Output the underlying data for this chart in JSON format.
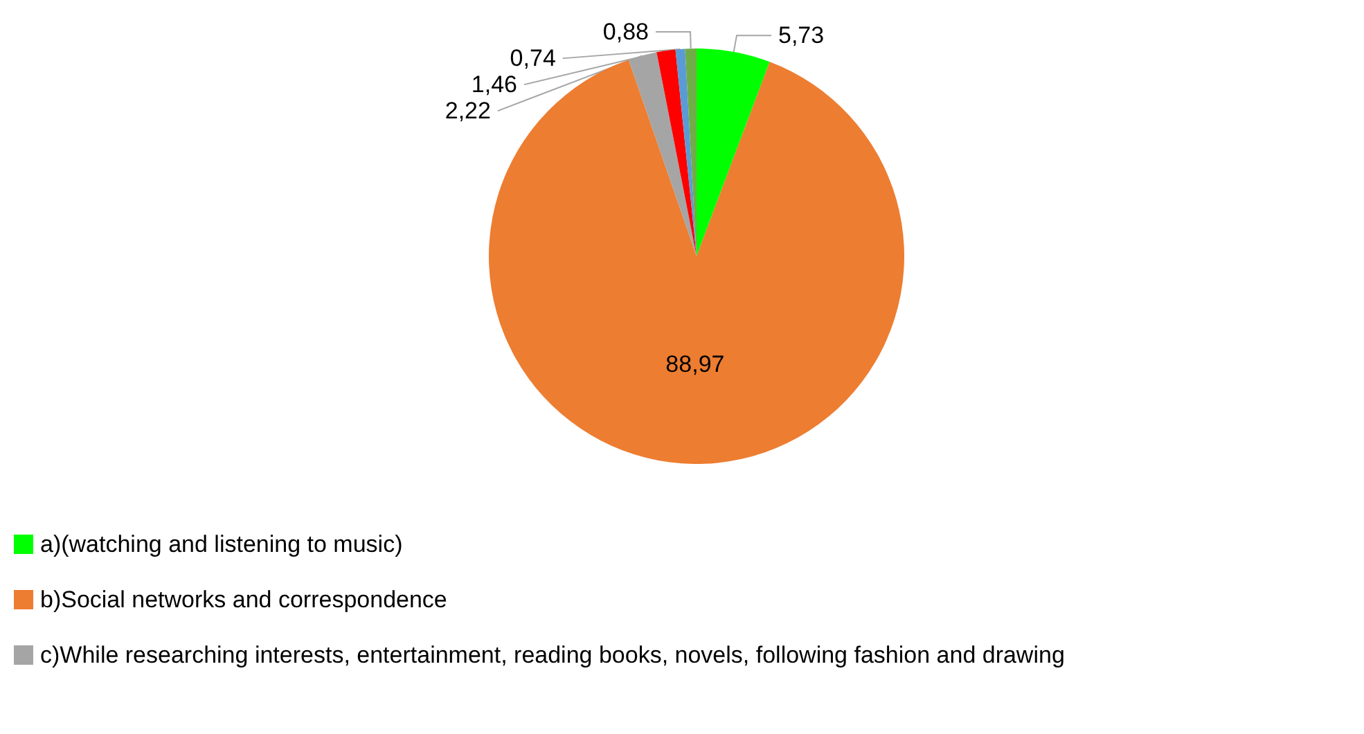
{
  "chart_data": {
    "type": "pie",
    "categories": [
      "a)(watching and listening to music)",
      "b)Social networks and correspondence",
      "c)While researching interests, entertainment, reading books, novels, following fashion and drawing",
      null,
      null,
      null
    ],
    "values": [
      5.73,
      88.97,
      2.22,
      1.46,
      0.74,
      0.88
    ],
    "value_labels": [
      "5,73",
      "88,97",
      "2,22",
      "1,46",
      "0,74",
      "0,88"
    ],
    "colors": [
      "#00ff00",
      "#ed7d31",
      "#a5a5a5",
      "#ff0000",
      "#5b9bd5",
      "#70ad47"
    ],
    "legend": "bottom left"
  }
}
